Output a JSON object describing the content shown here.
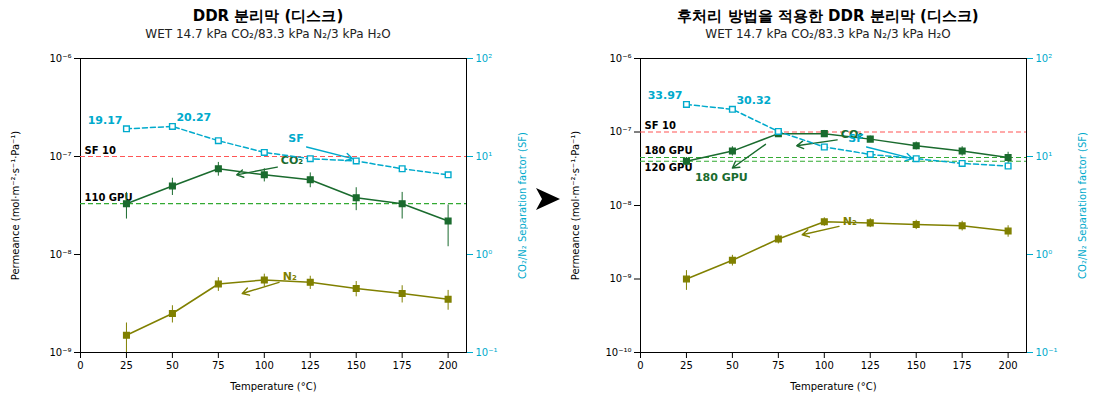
{
  "chart_data": [
    {
      "type": "line",
      "title": "DDR 분리막 (디스크)",
      "subtitle": "WET 14.7 kPa CO₂/83.3 kPa N₂/3 kPa H₂O",
      "xlabel": "Temperature (°C)",
      "ylabel": "Permeance (mol·m⁻²·s⁻¹·Pa⁻¹)",
      "y2label": "CO₂/N₂ Separation factor (SF)",
      "log": "y",
      "x": [
        25,
        50,
        75,
        100,
        125,
        150,
        175,
        200
      ],
      "xlim": [
        0,
        210
      ],
      "xticks": [
        0,
        25,
        50,
        75,
        100,
        125,
        150,
        175,
        200
      ],
      "ylim": [
        1e-09,
        1e-06
      ],
      "yticks": [
        {
          "value": 1e-09,
          "label": "10⁻⁹"
        },
        {
          "value": 1e-08,
          "label": "10⁻⁸"
        },
        {
          "value": 1e-07,
          "label": "10⁻⁷"
        },
        {
          "value": 1e-06,
          "label": "10⁻⁶"
        }
      ],
      "y2lim": [
        0.1,
        100
      ],
      "y2ticks": [
        {
          "value": 0.1,
          "label": "10⁻¹"
        },
        {
          "value": 1,
          "label": "10⁰"
        },
        {
          "value": 10,
          "label": "10¹"
        },
        {
          "value": 100,
          "label": "10²"
        }
      ],
      "series": [
        {
          "name": "CO₂",
          "color": "#1a6b2e",
          "marker": "square",
          "line_style": "solid",
          "values": [
            3.3e-08,
            5e-08,
            7.5e-08,
            6.5e-08,
            5.8e-08,
            3.8e-08,
            3.3e-08,
            2.2e-08
          ],
          "errors": [
            1e-08,
            1e-08,
            1.2e-08,
            1e-08,
            1e-08,
            1e-08,
            1e-08,
            1e-08
          ]
        },
        {
          "name": "N₂",
          "color": "#808000",
          "marker": "square",
          "line_style": "solid",
          "values": [
            1.5e-09,
            2.5e-09,
            5e-09,
            5.5e-09,
            5.2e-09,
            4.5e-09,
            4e-09,
            3.5e-09
          ],
          "errors": [
            5e-10,
            5e-10,
            8e-10,
            8e-10,
            8e-10,
            8e-10,
            8e-10,
            8e-10
          ]
        },
        {
          "name": "SF",
          "axis": "y2",
          "color": "#00aacc",
          "marker": "open_square",
          "line_style": "dashed",
          "values": [
            19.17,
            20.27,
            14.5,
            11.0,
            9.5,
            9.0,
            7.5,
            6.5
          ]
        }
      ],
      "hlines": [
        {
          "value": 1e-07,
          "color": "#ff5555",
          "line_style": "dashed",
          "label": "SF 10"
        },
        {
          "value": 3.3e-08,
          "color": "#33aa33",
          "line_style": "dashed",
          "label": "110 GPU"
        }
      ],
      "annotations": [
        {
          "text": "19.17",
          "x": 25,
          "y": 19.17,
          "axis": "y2",
          "color": "#00aacc"
        },
        {
          "text": "20.27",
          "x": 50,
          "y": 20.27,
          "axis": "y2",
          "color": "#00aacc"
        },
        {
          "text": "CO₂",
          "x": 109,
          "y": 8.3e-08,
          "color": "#1a6b2e",
          "arrow": {
            "from": [
              107,
              7.8e-08
            ],
            "to": [
              85,
              6.5e-08
            ]
          }
        },
        {
          "text": "N₂",
          "x": 110,
          "y": 5.5e-09,
          "color": "#808000",
          "arrow": {
            "from": [
              108,
              5.2e-09
            ],
            "to": [
              88,
              4e-09
            ]
          }
        },
        {
          "text": "SF",
          "x": 113,
          "y": 14,
          "axis": "y2",
          "color": "#00aacc",
          "arrow": {
            "from": [
              123,
              12.5
            ],
            "to": [
              148,
              9.5
            ]
          }
        }
      ]
    },
    {
      "type": "line",
      "title": "후처리 방법을 적용한 DDR 분리막 (디스크)",
      "subtitle": "WET 14.7 kPa CO₂/83.3 kPa N₂/3 kPa H₂O",
      "xlabel": "Temperature (°C)",
      "ylabel": "Permeance (mol·m⁻²·s⁻¹·Pa⁻¹)",
      "y2label": "CO₂/N₂ Separation factor (SF)",
      "log": "y",
      "x": [
        25,
        50,
        75,
        100,
        125,
        150,
        175,
        200
      ],
      "xlim": [
        0,
        210
      ],
      "xticks": [
        0,
        25,
        50,
        75,
        100,
        125,
        150,
        175,
        200
      ],
      "ylim": [
        1e-10,
        1e-06
      ],
      "yticks": [
        {
          "value": 1e-10,
          "label": "10⁻¹⁰"
        },
        {
          "value": 1e-09,
          "label": "10⁻⁹"
        },
        {
          "value": 1e-08,
          "label": "10⁻⁸"
        },
        {
          "value": 1e-07,
          "label": "10⁻⁷"
        },
        {
          "value": 1e-06,
          "label": "10⁻⁶"
        }
      ],
      "y2lim": [
        0.1,
        100
      ],
      "y2ticks": [
        {
          "value": 0.1,
          "label": "10⁻¹"
        },
        {
          "value": 1,
          "label": "10⁰"
        },
        {
          "value": 10,
          "label": "10¹"
        },
        {
          "value": 100,
          "label": "10²"
        }
      ],
      "series": [
        {
          "name": "CO₂",
          "color": "#1a6b2e",
          "marker": "square",
          "line_style": "solid",
          "values": [
            4e-08,
            5.5e-08,
            9.5e-08,
            9.5e-08,
            8e-08,
            6.5e-08,
            5.5e-08,
            4.5e-08
          ],
          "errors": [
            5e-09,
            8e-09,
            1e-08,
            1e-08,
            8e-09,
            8e-09,
            8e-09,
            8e-09
          ]
        },
        {
          "name": "N₂",
          "color": "#808000",
          "marker": "square",
          "line_style": "solid",
          "values": [
            1e-09,
            1.8e-09,
            3.5e-09,
            6e-09,
            5.8e-09,
            5.5e-09,
            5.3e-09,
            4.5e-09
          ],
          "errors": [
            3e-10,
            3e-10,
            5e-10,
            8e-10,
            8e-10,
            8e-10,
            8e-10,
            8e-10
          ]
        },
        {
          "name": "SF",
          "axis": "y2",
          "color": "#00aacc",
          "marker": "open_square",
          "line_style": "dashed",
          "values": [
            33.97,
            30.32,
            18.0,
            12.5,
            10.5,
            9.5,
            8.5,
            8.0
          ]
        }
      ],
      "hlines": [
        {
          "value": 1e-07,
          "color": "#ff5555",
          "line_style": "dashed",
          "label": "SF 10"
        },
        {
          "value": 4.5e-08,
          "color": "#33aa33",
          "line_style": "dashed",
          "label": "180 GPU"
        },
        {
          "value": 4e-08,
          "color": "#33aa33",
          "line_style": "dashed",
          "label": "120 GPU"
        }
      ],
      "annotations": [
        {
          "text": "33.97",
          "x": 25,
          "y": 33.97,
          "axis": "y2",
          "color": "#00aacc"
        },
        {
          "text": "30.32",
          "x": 50,
          "y": 30.32,
          "axis": "y2",
          "color": "#00aacc"
        },
        {
          "text": "CO₂",
          "x": 109,
          "y": 8.3e-08,
          "color": "#1a6b2e",
          "arrow": {
            "from": [
              107,
              7.8e-08
            ],
            "to": [
              85,
              6.5e-08
            ]
          }
        },
        {
          "text": "N₂",
          "x": 110,
          "y": 5.5e-09,
          "color": "#808000",
          "arrow": {
            "from": [
              108,
              5.2e-09
            ],
            "to": [
              88,
              4e-09
            ]
          }
        },
        {
          "text": "SF",
          "x": 113,
          "y": 14,
          "axis": "y2",
          "color": "#00aacc",
          "arrow": {
            "from": [
              123,
              12.5
            ],
            "to": [
              148,
              9.5
            ]
          }
        },
        {
          "text": "180 GPU",
          "x": 44,
          "y": 2.16e-08,
          "color": "#1a6b2e",
          "arrow": {
            "from": [
              68,
              6.8e-08
            ],
            "to": [
              50,
              3.24e-08
            ]
          }
        }
      ]
    }
  ]
}
